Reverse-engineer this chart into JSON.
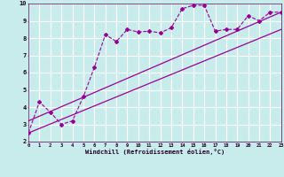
{
  "xlabel": "Windchill (Refroidissement éolien,°C)",
  "xlim": [
    0,
    23
  ],
  "ylim": [
    2,
    10
  ],
  "xticks": [
    0,
    1,
    2,
    3,
    4,
    5,
    6,
    7,
    8,
    9,
    10,
    11,
    12,
    13,
    14,
    15,
    16,
    17,
    18,
    19,
    20,
    21,
    22,
    23
  ],
  "yticks": [
    2,
    3,
    4,
    5,
    6,
    7,
    8,
    9,
    10
  ],
  "bg_color": "#c8ecec",
  "line_color": "#990099",
  "grid_color": "#ffffff",
  "scatter_x": [
    0,
    1,
    2,
    3,
    4,
    5,
    6,
    7,
    8,
    9,
    10,
    11,
    12,
    13,
    14,
    15,
    16,
    17,
    18,
    19,
    20,
    21,
    22,
    23
  ],
  "scatter_y": [
    2.5,
    4.3,
    3.7,
    3.0,
    3.2,
    4.6,
    6.3,
    8.2,
    7.8,
    8.5,
    8.35,
    8.4,
    8.3,
    8.6,
    9.7,
    9.9,
    9.9,
    8.4,
    8.5,
    8.5,
    9.3,
    9.0,
    9.5,
    9.5
  ],
  "line1_x": [
    0,
    23
  ],
  "line1_y": [
    2.5,
    8.5
  ],
  "line2_x": [
    0,
    23
  ],
  "line2_y": [
    3.2,
    9.5
  ]
}
